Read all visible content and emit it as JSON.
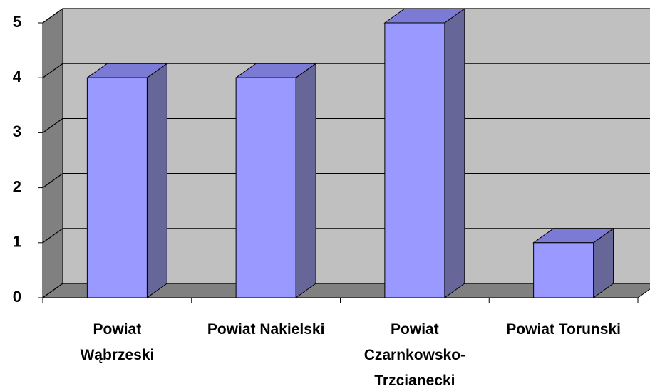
{
  "chart_data": {
    "type": "bar3d",
    "categories": [
      "Powiat Wąbrzeski",
      "Powiat Nakielski",
      "Powiat Czarnkowsko-Trzcianecki",
      "Powiat Torunski"
    ],
    "values": [
      4,
      4,
      5,
      1
    ],
    "color": "#9999ff",
    "ylim": [
      0,
      5
    ],
    "yticks": [
      0,
      1,
      2,
      3,
      4,
      5
    ],
    "grid": true
  }
}
